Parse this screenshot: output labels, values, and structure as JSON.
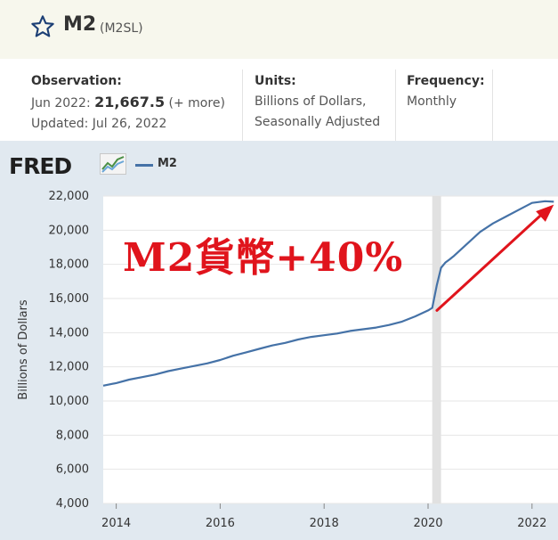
{
  "header": {
    "title": "M2",
    "series_id": "(M2SL)"
  },
  "meta": {
    "observation_label": "Observation:",
    "observation_date": "Jun 2022:",
    "observation_value": "21,667.5",
    "observation_more": "(+ more)",
    "updated": "Updated: Jul 26, 2022",
    "units_label": "Units:",
    "units_line1": "Billions of Dollars,",
    "units_line2": "Seasonally Adjusted",
    "frequency_label": "Frequency:",
    "frequency_value": "Monthly"
  },
  "logo": {
    "text": "FRED"
  },
  "annotation": {
    "text": "M2貨幣+40%",
    "color": "#e0141c"
  },
  "chart_data": {
    "type": "line",
    "ylabel": "Billions of Dollars",
    "xlabel": "",
    "ylim": [
      4000,
      22000
    ],
    "xlim": [
      2013.75,
      2022.5
    ],
    "y_ticks": [
      "4,000",
      "6,000",
      "8,000",
      "10,000",
      "12,000",
      "14,000",
      "16,000",
      "18,000",
      "20,000",
      "22,000"
    ],
    "y_tick_values": [
      4000,
      6000,
      8000,
      10000,
      12000,
      14000,
      16000,
      18000,
      20000,
      22000
    ],
    "x_ticks": [
      "2014",
      "2016",
      "2018",
      "2020",
      "2022"
    ],
    "x_tick_values": [
      2014,
      2016,
      2018,
      2020,
      2022
    ],
    "legend": "top-left",
    "grid": true,
    "recession_band": [
      2020.08,
      2020.25
    ],
    "series": [
      {
        "name": "M2",
        "color": "#4572a7",
        "x": [
          2013.75,
          2014.0,
          2014.25,
          2014.5,
          2014.75,
          2015.0,
          2015.25,
          2015.5,
          2015.75,
          2016.0,
          2016.25,
          2016.5,
          2016.75,
          2017.0,
          2017.25,
          2017.5,
          2017.75,
          2018.0,
          2018.25,
          2018.5,
          2018.75,
          2019.0,
          2019.25,
          2019.5,
          2019.75,
          2020.0,
          2020.08,
          2020.17,
          2020.25,
          2020.33,
          2020.42,
          2020.5,
          2020.75,
          2021.0,
          2021.25,
          2021.5,
          2021.75,
          2022.0,
          2022.25,
          2022.42
        ],
        "values": [
          10900,
          11050,
          11250,
          11400,
          11550,
          11750,
          11900,
          12050,
          12200,
          12400,
          12650,
          12850,
          13050,
          13250,
          13400,
          13600,
          13750,
          13850,
          13950,
          14100,
          14200,
          14300,
          14450,
          14650,
          14950,
          15300,
          15450,
          16800,
          17800,
          18100,
          18300,
          18500,
          19200,
          19900,
          20400,
          20800,
          21200,
          21600,
          21700,
          21668
        ]
      }
    ]
  }
}
